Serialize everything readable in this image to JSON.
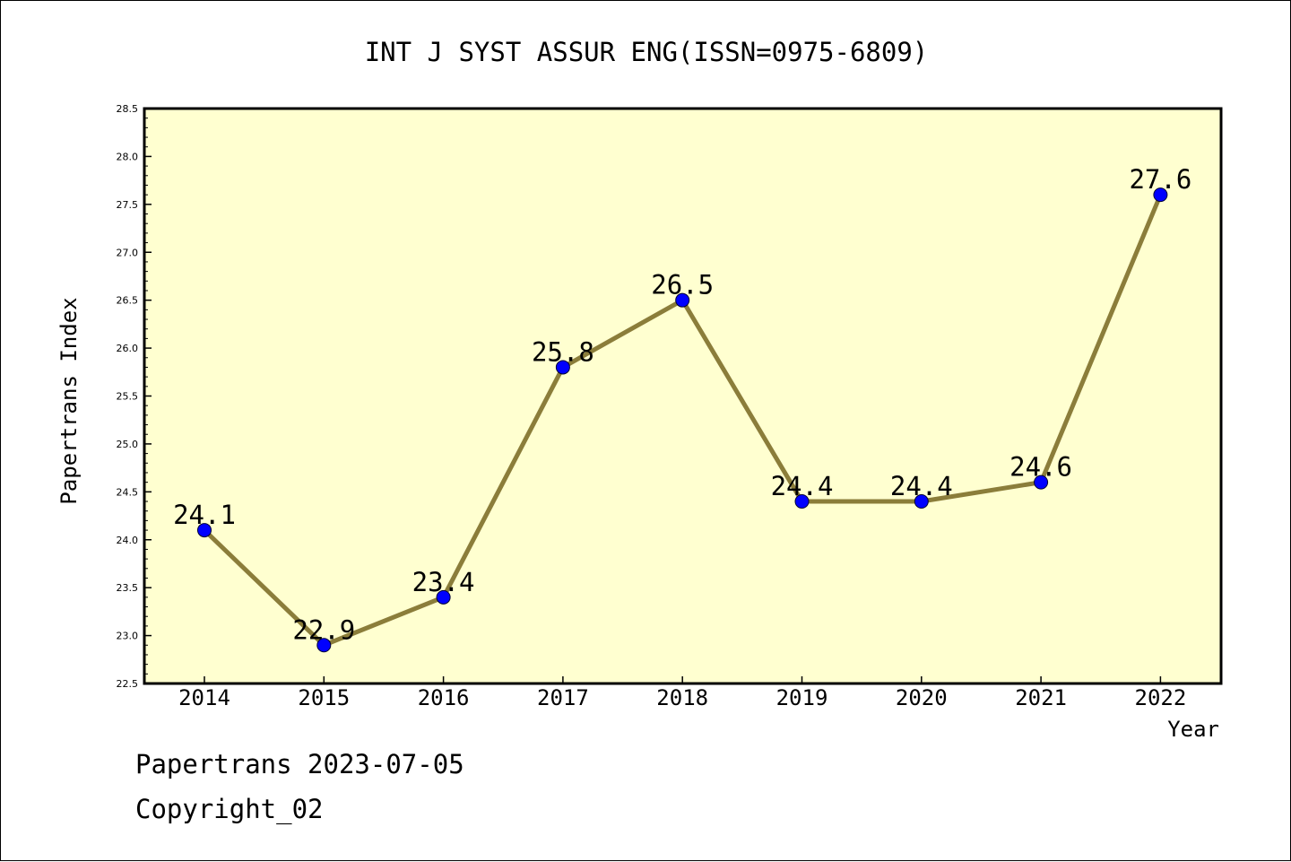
{
  "chart_data": {
    "type": "line",
    "title": "INT J SYST ASSUR ENG(ISSN=0975-6809)",
    "xlabel": "Year",
    "ylabel": "Papertrans Index",
    "categories": [
      "2014",
      "2015",
      "2016",
      "2017",
      "2018",
      "2019",
      "2020",
      "2021",
      "2022"
    ],
    "series": [
      {
        "values": [
          24.1,
          22.9,
          23.4,
          25.8,
          26.5,
          24.4,
          24.4,
          24.6,
          27.6
        ]
      }
    ],
    "data_labels": [
      "24.1",
      "22.9",
      "23.4",
      "25.8",
      "26.5",
      "24.4",
      "24.4",
      "24.6",
      "27.6"
    ],
    "ylim": [
      22.5,
      28.5
    ],
    "yticks": [
      "22.5",
      "23.0",
      "23.5",
      "24.0",
      "24.5",
      "25.0",
      "25.5",
      "26.0",
      "26.5",
      "27.0",
      "27.5",
      "28.0",
      "28.5"
    ],
    "grid": false,
    "colors": {
      "plot_background": "#ffffd0",
      "line": "#8b7d3a",
      "marker": "#0000ff"
    }
  },
  "footer": {
    "stamp": "Papertrans 2023-07-05",
    "copyright": "Copyright_02"
  }
}
